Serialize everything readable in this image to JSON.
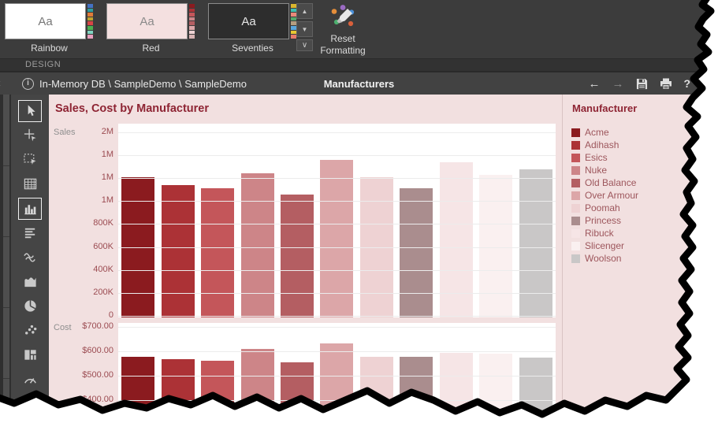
{
  "colors": {
    "ribbon_bg": "#3C3C3C",
    "toolbar_bg": "#424242",
    "panel_bg": "#F2E0E0",
    "accent_red": "#8E2433",
    "tick_text": "#9B4B51",
    "legend_text": "#9D565C"
  },
  "ribbon": {
    "tab_label": "DESIGN",
    "reset_button": {
      "label": "Reset\nFormatting"
    },
    "themes": [
      {
        "label": "Rainbow",
        "swatch_bg": "#FFFFFF",
        "swatch_text_color": "#777777",
        "strip": [
          "#4472C4",
          "#2E9E9E",
          "#E07B39",
          "#BFA22E",
          "#D64545",
          "#4CAF50",
          "#7FD4C1",
          "#E8A0BF"
        ]
      },
      {
        "label": "Red",
        "swatch_bg": "#F4E0E0",
        "swatch_text_color": "#8A8A8A",
        "strip": [
          "#8B1B1F",
          "#AC3236",
          "#C4565A",
          "#CD8588",
          "#B45E62",
          "#DCA6A8",
          "#EED2D3",
          "#D8B4B4"
        ]
      },
      {
        "label": "Seventies",
        "swatch_bg": "#2D2D2D",
        "swatch_text_color": "#E6E6E6",
        "strip": [
          "#D9B52E",
          "#3FBFB0",
          "#E8897A",
          "#52A86A",
          "#B59E7F",
          "#5AA7DC",
          "#E8C832",
          "#E87A6A"
        ]
      }
    ],
    "swatch_sample_text": "Aa",
    "gallery_scroll_icons": [
      "up-arrow-icon",
      "down-arrow-icon",
      "gallery-more-icon"
    ]
  },
  "toolbar": {
    "breadcrumb": "In-Memory DB \\ SampleDemo \\ SampleDemo",
    "title": "Manufacturers",
    "icons": [
      "back-icon",
      "forward-icon",
      "save-icon",
      "print-icon",
      "help-icon",
      "close-icon"
    ]
  },
  "sidebar": {
    "tools": [
      {
        "name": "pointer",
        "selected": true
      },
      {
        "name": "crosshair",
        "selected": false
      },
      {
        "name": "marquee",
        "selected": false
      },
      {
        "name": "grid",
        "selected": false
      },
      {
        "name": "bar-chart",
        "selected": true
      },
      {
        "name": "text-lines",
        "selected": false
      },
      {
        "name": "line-chart",
        "selected": false
      },
      {
        "name": "area-chart",
        "selected": false
      },
      {
        "name": "pie-chart",
        "selected": false
      },
      {
        "name": "scatter-chart",
        "selected": false
      },
      {
        "name": "treemap",
        "selected": false
      },
      {
        "name": "gauge",
        "selected": false
      }
    ]
  },
  "dashboard": {
    "item_title": "Sales, Cost by Manufacturer",
    "panes": [
      {
        "axis_label": "Sales",
        "ticks": [
          "2M",
          "1M",
          "1M",
          "1M",
          "800K",
          "600K",
          "400K",
          "200K",
          "0"
        ]
      },
      {
        "axis_label": "Cost",
        "ticks": [
          "$700.00",
          "$600.00",
          "$500.00",
          "$400.00"
        ]
      }
    ]
  },
  "legend": {
    "title": "Manufacturer",
    "items": [
      {
        "label": "Acme",
        "color": "#8B1B1F"
      },
      {
        "label": "Adihash",
        "color": "#AC3236"
      },
      {
        "label": "Esics",
        "color": "#C4565A"
      },
      {
        "label": "Nuke",
        "color": "#CD8588"
      },
      {
        "label": "Old Balance",
        "color": "#B45E62"
      },
      {
        "label": "Over Armour",
        "color": "#DCA6A8"
      },
      {
        "label": "Poomah",
        "color": "#EED2D3"
      },
      {
        "label": "Princess",
        "color": "#AA8D8E"
      },
      {
        "label": "Ribuck",
        "color": "#F6E5E6"
      },
      {
        "label": "Slicenger",
        "color": "#FAF0F0"
      },
      {
        "label": "Woolson",
        "color": "#C9C7C7"
      }
    ]
  },
  "chart_data": [
    {
      "type": "bar",
      "title": "Sales by Manufacturer",
      "categories": [
        "Acme",
        "Adihash",
        "Esics",
        "Nuke",
        "Old Balance",
        "Over Armour",
        "Poomah",
        "Princess",
        "Ribuck",
        "Slicenger",
        "Woolson"
      ],
      "values": [
        1220000,
        1150000,
        1120000,
        1250000,
        1070000,
        1370000,
        1220000,
        1120000,
        1350000,
        1240000,
        1290000
      ],
      "xlabel": "",
      "ylabel": "Sales",
      "ylim": [
        0,
        1600000
      ],
      "grid": true,
      "legend_position": "right"
    },
    {
      "type": "bar",
      "title": "Cost by Manufacturer",
      "categories": [
        "Acme",
        "Adihash",
        "Esics",
        "Nuke",
        "Old Balance",
        "Over Armour",
        "Poomah",
        "Princess",
        "Ribuck",
        "Slicenger",
        "Woolson"
      ],
      "values": [
        576,
        568,
        562,
        610,
        555,
        632,
        576,
        579,
        595,
        590,
        573
      ],
      "xlabel": "",
      "ylabel": "Cost",
      "ylim_visible": [
        400,
        720
      ],
      "grid": true,
      "note": "bottom of chart cut off by torn screenshot edge"
    }
  ]
}
